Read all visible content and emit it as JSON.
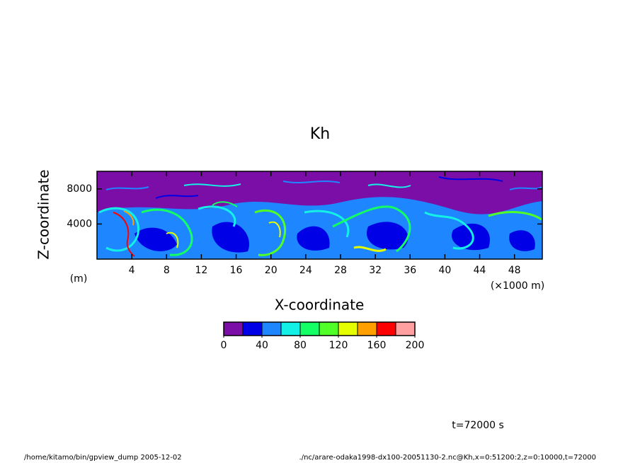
{
  "chart_data": {
    "type": "heatmap",
    "title": "Kh",
    "x_label": "X-coordinate",
    "y_label": "Z-coordinate",
    "x_unit": "(×1000 m)",
    "y_unit": "(m)",
    "xlim": [
      0,
      51.2
    ],
    "xticks": [
      4,
      8,
      12,
      16,
      20,
      24,
      28,
      32,
      36,
      40,
      44,
      48
    ],
    "ylim": [
      0,
      10000
    ],
    "yticks": [
      4000,
      8000
    ],
    "colorbar": {
      "lim": [
        0,
        200
      ],
      "ticks": [
        0,
        40,
        80,
        120,
        160,
        200
      ],
      "colors": [
        "#7a0ea6",
        "#0000e6",
        "#1e87ff",
        "#14f0e6",
        "#14ff64",
        "#50ff28",
        "#e6ff00",
        "#ffa000",
        "#ff0000",
        "#ffa0a0"
      ]
    },
    "annotation": "t=72000 s",
    "footer_left": "/home/kitamo/bin/gpview_dump  2005-12-02",
    "footer_right": "./nc/arare-odaka1998-dx100-20051130-2.nc@Kh,x=0:51200:2,z=0:10000,t=72000"
  }
}
